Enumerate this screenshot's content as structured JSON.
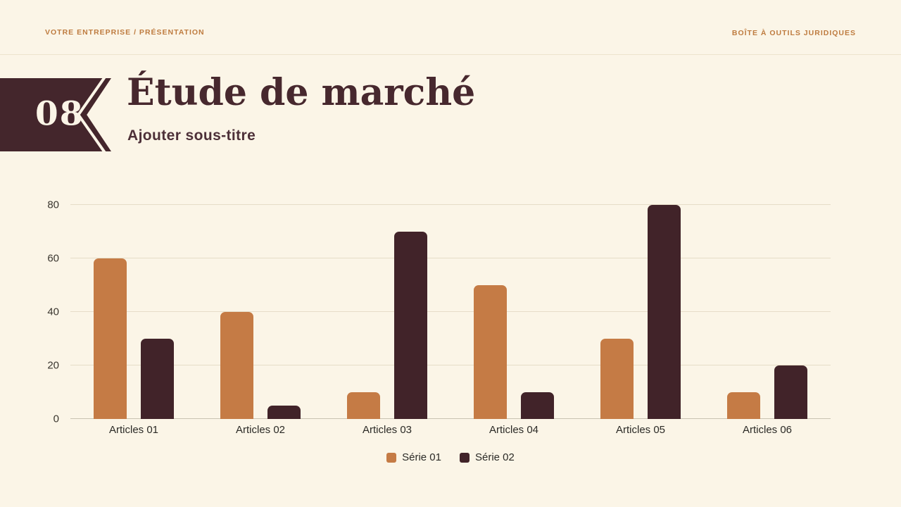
{
  "header": {
    "left": "VOTRE ENTREPRISE / PRÉSENTATION",
    "right": "BOÎTE À OUTILS JURIDIQUES"
  },
  "slide": {
    "number": "08",
    "title": "Étude de marché",
    "subtitle": "Ajouter sous-titre"
  },
  "colors": {
    "background": "#FBF5E7",
    "header_text": "#BE7B3F",
    "banner": "#44262C",
    "title_text": "#47282E",
    "series1": "#C57B45",
    "series2": "#412329",
    "gridline": "#E6DDC8"
  },
  "chart_data": {
    "type": "bar",
    "title": "",
    "xlabel": "",
    "ylabel": "",
    "categories": [
      "Articles 01",
      "Articles 02",
      "Articles 03",
      "Articles 04",
      "Articles 05",
      "Articles 06"
    ],
    "series": [
      {
        "name": "Série 01",
        "color": "#C57B45",
        "values": [
          60,
          40,
          10,
          50,
          30,
          10
        ]
      },
      {
        "name": "Série 02",
        "color": "#412329",
        "values": [
          30,
          5,
          70,
          10,
          80,
          20
        ]
      }
    ],
    "ylim": [
      0,
      80
    ],
    "yticks": [
      0,
      20,
      40,
      60,
      80
    ],
    "grid": true,
    "legend_position": "bottom"
  }
}
